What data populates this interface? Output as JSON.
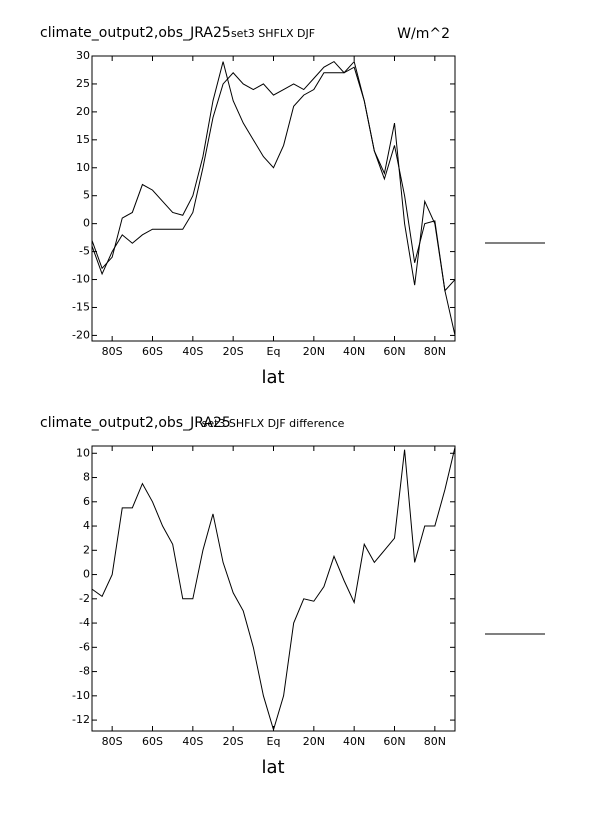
{
  "chart_data": [
    {
      "type": "line",
      "title": "climate_output2,obs_JRA25",
      "subtitle": "set3 SHFLX DJF",
      "units": "W/m^2",
      "xlabel": "lat",
      "x": [
        -90,
        -85,
        -80,
        -75,
        -70,
        -65,
        -60,
        -55,
        -50,
        -45,
        -40,
        -35,
        -30,
        -25,
        -20,
        -15,
        -10,
        -5,
        0,
        5,
        10,
        15,
        20,
        25,
        30,
        35,
        40,
        45,
        50,
        55,
        60,
        65,
        70,
        75,
        80,
        85,
        90
      ],
      "series": [
        {
          "color": "#000000",
          "values": [
            -3,
            -8,
            -6,
            1,
            2,
            7,
            6,
            4,
            2,
            1.5,
            5,
            12,
            22,
            29,
            22,
            18,
            15,
            12,
            10,
            14,
            21,
            23,
            24,
            27,
            27,
            27,
            28,
            22,
            13,
            9,
            18,
            0,
            -11,
            4,
            0,
            -12,
            -20
          ]
        },
        {
          "color": "#000000",
          "values": [
            -4,
            -9,
            -5,
            -2,
            -3.5,
            -2,
            -1,
            -1,
            -1,
            -1,
            2,
            10,
            19,
            25,
            27,
            25,
            24,
            25,
            23,
            24,
            25,
            24,
            26,
            28,
            29,
            27,
            29,
            22,
            13,
            8,
            14,
            5,
            -7,
            0,
            0.5,
            -12,
            -10
          ]
        }
      ],
      "xlim": [
        -90,
        90
      ],
      "ylim": [
        -21,
        30
      ],
      "xticks": [
        {
          "value": -80,
          "label": "80S"
        },
        {
          "value": -60,
          "label": "60S"
        },
        {
          "value": -40,
          "label": "40S"
        },
        {
          "value": -20,
          "label": "20S"
        },
        {
          "value": 0,
          "label": "Eq"
        },
        {
          "value": 20,
          "label": "20N"
        },
        {
          "value": 40,
          "label": "40N"
        },
        {
          "value": 60,
          "label": "60N"
        },
        {
          "value": 80,
          "label": "80N"
        }
      ],
      "yticks": [
        30,
        25,
        20,
        15,
        10,
        5,
        0,
        -5,
        -10,
        -15,
        -20
      ]
    },
    {
      "type": "line",
      "title": "climate_output2,obs_JRA25",
      "subtitle": "set3 SHFLX DJF difference",
      "xlabel": "lat",
      "x": [
        -90,
        -85,
        -80,
        -75,
        -70,
        -65,
        -60,
        -55,
        -50,
        -45,
        -40,
        -35,
        -30,
        -25,
        -20,
        -15,
        -10,
        -5,
        0,
        5,
        10,
        15,
        20,
        25,
        30,
        35,
        40,
        45,
        50,
        55,
        60,
        65,
        70,
        75,
        80,
        85,
        90
      ],
      "series": [
        {
          "color": "#000000",
          "values": [
            -1.2,
            -1.8,
            0,
            5.5,
            5.5,
            7.5,
            6,
            4,
            2.5,
            -2,
            -2,
            2,
            5,
            1,
            -1.5,
            -3,
            -6,
            -10,
            -12.8,
            -10,
            -4,
            -2,
            -2.2,
            -1,
            1.5,
            -0.5,
            -2.3,
            2.5,
            1,
            2,
            3,
            10.3,
            1,
            4,
            4,
            7,
            10.5
          ]
        }
      ],
      "xlim": [
        -90,
        90
      ],
      "ylim": [
        -12.9,
        10.6
      ],
      "xticks": [
        {
          "value": -80,
          "label": "80S"
        },
        {
          "value": -60,
          "label": "60S"
        },
        {
          "value": -40,
          "label": "40S"
        },
        {
          "value": -20,
          "label": "20S"
        },
        {
          "value": 0,
          "label": "Eq"
        },
        {
          "value": 20,
          "label": "20N"
        },
        {
          "value": 40,
          "label": "40N"
        },
        {
          "value": 60,
          "label": "60N"
        },
        {
          "value": 80,
          "label": "80N"
        }
      ],
      "yticks": [
        10,
        8,
        6,
        4,
        2,
        0,
        -2,
        -4,
        -6,
        -8,
        -10,
        -12
      ]
    }
  ]
}
